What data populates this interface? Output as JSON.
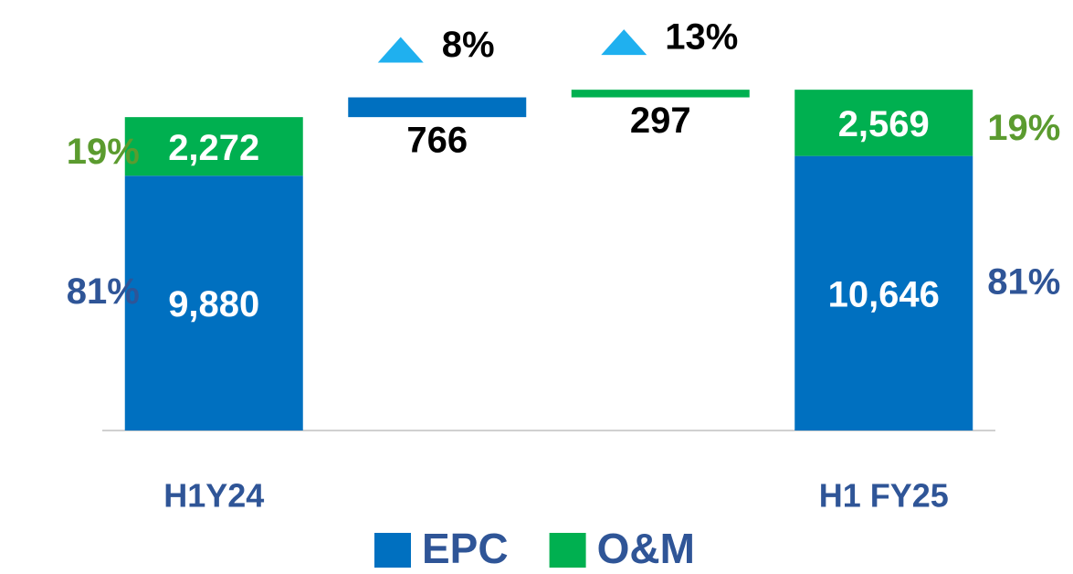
{
  "chart_data": {
    "type": "waterfall",
    "categories": [
      "H1Y24",
      null,
      null,
      "H1 FY25"
    ],
    "series": [
      {
        "name": "EPC",
        "color": "#0070c0",
        "values": [
          9880,
          766,
          null,
          10646
        ],
        "value_labels": [
          "9,880",
          "766",
          null,
          "10,646"
        ],
        "shares": [
          {
            "value": 81,
            "label": "81%"
          },
          null,
          null,
          {
            "value": 81,
            "label": "81%"
          }
        ],
        "changes": [
          null,
          {
            "value": 8,
            "label": "8%"
          },
          null,
          null
        ]
      },
      {
        "name": "O&M",
        "color": "#00b050",
        "values": [
          2272,
          null,
          297,
          2569
        ],
        "value_labels": [
          "2,272",
          null,
          "297",
          "2,569"
        ],
        "shares": [
          {
            "value": 19,
            "label": "19%"
          },
          null,
          null,
          {
            "value": 19,
            "label": "19%"
          }
        ],
        "changes": [
          null,
          null,
          {
            "value": 13,
            "label": "13%"
          },
          null
        ]
      }
    ],
    "ylim": [
      0,
      14000
    ],
    "share_colors": [
      "#2f5597",
      "#5b9b2f"
    ],
    "change_color": "#1fb0ef"
  }
}
